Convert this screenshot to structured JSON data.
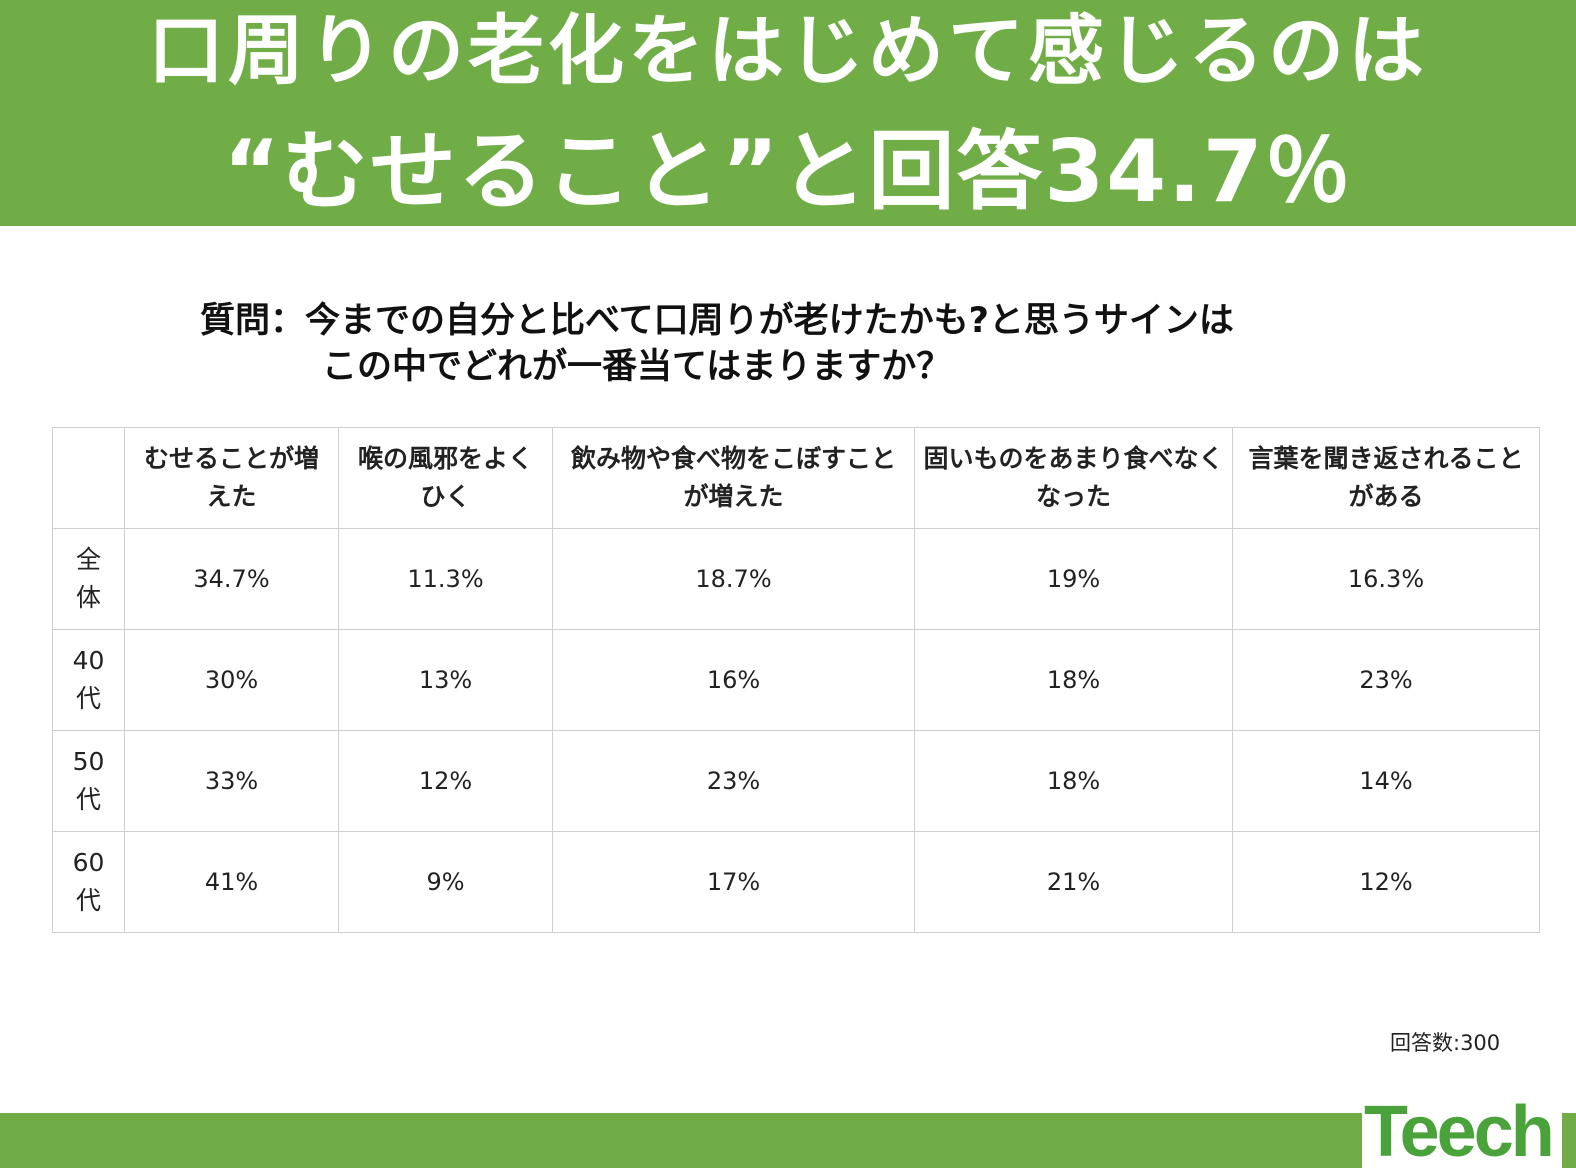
{
  "title": {
    "line1": "口周りの老化をはじめて感じるのは",
    "line2": "“むせること”と回答34.7％"
  },
  "question": {
    "line1": "質問：今までの自分と比べて口周りが老けたかも?と思うサインは",
    "line2": "この中でどれが一番当てはまりますか？"
  },
  "chart_data": {
    "type": "table",
    "columns": [
      "むせることが増えた",
      "喉の風邪をよくひく",
      "飲み物や食べ物をこぼすことが増えた",
      "固いものをあまり食べなくなった",
      "言葉を聞き返されることがある"
    ],
    "rows": [
      {
        "label": "全体",
        "values": [
          "34.7%",
          "11.3%",
          "18.7%",
          "19%",
          "16.3%"
        ]
      },
      {
        "label": "40代",
        "values": [
          "30%",
          "13%",
          "16%",
          "18%",
          "23%"
        ]
      },
      {
        "label": "50代",
        "values": [
          "33%",
          "12%",
          "23%",
          "18%",
          "14%"
        ]
      },
      {
        "label": "60代",
        "values": [
          "41%",
          "9%",
          "17%",
          "21%",
          "12%"
        ]
      }
    ]
  },
  "response_count": "回答数:300",
  "logo": "Teech",
  "colors": {
    "accent": "#70ad47",
    "logo": "#4aa33a"
  }
}
